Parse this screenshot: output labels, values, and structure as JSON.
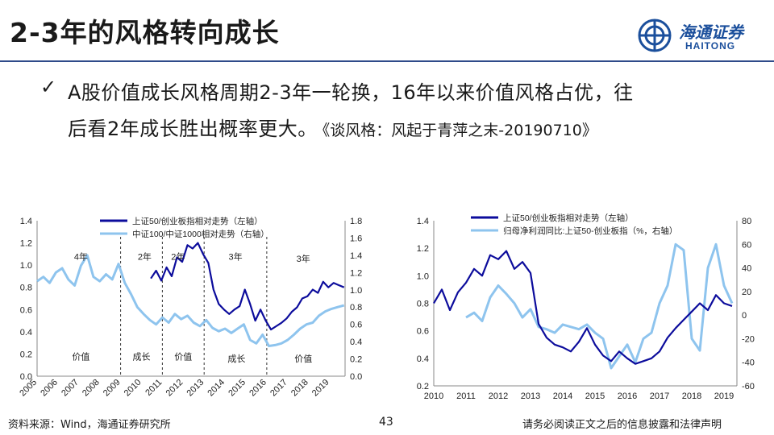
{
  "slide": {
    "title": "2-3年的风格转向成长",
    "logo": {
      "cn": "海通证券",
      "en": "HAITONG"
    },
    "bullet": {
      "check": "✓",
      "line1": "A股价值成长风格周期2-3年一轮换，16年以来价值风格占优，往",
      "line2": "后看2年成长胜出概率更大。",
      "ref": "《谈风格：风起于青萍之末-20190710》"
    },
    "footer": {
      "source": "资料来源：Wind，海通证券研究所",
      "page": "43",
      "disclaimer": "请务必阅读正文之后的信息披露和法律声明"
    }
  },
  "colors": {
    "dark_series": "#0c0c9c",
    "light_series": "#8ec4ee",
    "title_rule": "#2f4b8a",
    "logo": "#1b4f9c"
  },
  "chart_data": [
    {
      "type": "line",
      "x_type": "time",
      "xlim": [
        2005,
        2019.75
      ],
      "x_ticks": [
        "2005",
        "2006",
        "2007",
        "2008",
        "2009",
        "2010",
        "2011",
        "2012",
        "2013",
        "2014",
        "2015",
        "2016",
        "2017",
        "2018",
        "2019"
      ],
      "ylim_left": [
        0,
        1.4
      ],
      "yticks_left": [
        "0.0",
        "0.2",
        "0.4",
        "0.6",
        "0.8",
        "1.0",
        "1.2",
        "1.4"
      ],
      "ylim_right": [
        0,
        1.8
      ],
      "yticks_right": [
        "0.0",
        "0.2",
        "0.4",
        "0.6",
        "0.8",
        "1.0",
        "1.2",
        "1.4",
        "1.6",
        "1.8"
      ],
      "grid": false,
      "legend_position": "top-center",
      "series": [
        {
          "name": "上证50/创业板指相对走势（左轴）",
          "axis": "left",
          "color": "#0c0c9c",
          "x": [
            2010.45,
            2010.7,
            2010.95,
            2011.2,
            2011.45,
            2011.7,
            2011.95,
            2012.2,
            2012.45,
            2012.7,
            2012.95,
            2013.2,
            2013.45,
            2013.7,
            2013.95,
            2014.2,
            2014.45,
            2014.7,
            2014.95,
            2015.2,
            2015.45,
            2015.7,
            2015.95,
            2016.2,
            2016.45,
            2016.7,
            2016.95,
            2017.2,
            2017.45,
            2017.7,
            2017.95,
            2018.2,
            2018.45,
            2018.7,
            2018.95,
            2019.2,
            2019.45,
            2019.7
          ],
          "y": [
            0.88,
            0.95,
            0.86,
            0.98,
            0.9,
            1.07,
            1.03,
            1.18,
            1.15,
            1.2,
            1.1,
            1.02,
            0.78,
            0.65,
            0.6,
            0.56,
            0.6,
            0.63,
            0.78,
            0.65,
            0.5,
            0.6,
            0.5,
            0.42,
            0.45,
            0.48,
            0.52,
            0.58,
            0.62,
            0.7,
            0.72,
            0.78,
            0.75,
            0.85,
            0.8,
            0.84,
            0.82,
            0.8
          ]
        },
        {
          "name": "中证100/中证1000相对走势（右轴）",
          "axis": "right",
          "color": "#8ec4ee",
          "x": [
            2005.0,
            2005.3,
            2005.6,
            2005.9,
            2006.2,
            2006.5,
            2006.8,
            2007.1,
            2007.4,
            2007.7,
            2008.0,
            2008.3,
            2008.6,
            2008.9,
            2009.2,
            2009.5,
            2009.8,
            2010.1,
            2010.4,
            2010.7,
            2011.0,
            2011.3,
            2011.6,
            2011.9,
            2012.2,
            2012.5,
            2012.8,
            2013.1,
            2013.4,
            2013.7,
            2014.0,
            2014.3,
            2014.6,
            2014.9,
            2015.2,
            2015.5,
            2015.8,
            2016.1,
            2016.4,
            2016.7,
            2017.0,
            2017.3,
            2017.6,
            2017.9,
            2018.2,
            2018.5,
            2018.8,
            2019.1,
            2019.4,
            2019.7
          ],
          "y": [
            1.1,
            1.15,
            1.08,
            1.2,
            1.25,
            1.12,
            1.05,
            1.28,
            1.4,
            1.15,
            1.1,
            1.18,
            1.12,
            1.3,
            1.08,
            0.95,
            0.8,
            0.72,
            0.65,
            0.6,
            0.68,
            0.62,
            0.72,
            0.66,
            0.7,
            0.62,
            0.58,
            0.65,
            0.56,
            0.52,
            0.55,
            0.5,
            0.55,
            0.6,
            0.42,
            0.38,
            0.48,
            0.35,
            0.36,
            0.38,
            0.42,
            0.48,
            0.55,
            0.6,
            0.62,
            0.7,
            0.75,
            0.78,
            0.8,
            0.82
          ]
        }
      ],
      "annotations": [
        {
          "text": "4年",
          "x": 2007.1,
          "y": 1.05
        },
        {
          "text": "2年",
          "x": 2010.15,
          "y": 1.05
        },
        {
          "text": "2年",
          "x": 2011.75,
          "y": 1.05
        },
        {
          "text": "3年",
          "x": 2014.5,
          "y": 1.05
        },
        {
          "text": "3年",
          "x": 2017.75,
          "y": 1.03
        },
        {
          "text": "价值",
          "x": 2007.1,
          "y": 0.15
        },
        {
          "text": "成长",
          "x": 2010.0,
          "y": 0.15
        },
        {
          "text": "价值",
          "x": 2012.0,
          "y": 0.15
        },
        {
          "text": "成长",
          "x": 2014.55,
          "y": 0.13
        },
        {
          "text": "价值",
          "x": 2017.75,
          "y": 0.13
        }
      ],
      "dividers_x": [
        2009.0,
        2011.0,
        2013.0,
        2016.0
      ]
    },
    {
      "type": "line",
      "x_type": "time",
      "xlim": [
        2010,
        2019.4
      ],
      "x_ticks": [
        "2010",
        "2011",
        "2012",
        "2013",
        "2014",
        "2015",
        "2016",
        "2017",
        "2018",
        "2019"
      ],
      "ylim_left": [
        0.2,
        1.4
      ],
      "yticks_left": [
        "0.2",
        "0.4",
        "0.6",
        "0.8",
        "1.0",
        "1.2",
        "1.4"
      ],
      "ylim_right": [
        -60,
        80
      ],
      "yticks_right": [
        "-60",
        "-40",
        "-20",
        "0",
        "20",
        "40",
        "60",
        "80"
      ],
      "grid": false,
      "legend_position": "top-center",
      "series": [
        {
          "name": "上证50/创业板指相对走势（左轴）",
          "axis": "left",
          "color": "#0c0c9c",
          "x": [
            2010.0,
            2010.25,
            2010.5,
            2010.75,
            2011.0,
            2011.25,
            2011.5,
            2011.75,
            2012.0,
            2012.25,
            2012.5,
            2012.75,
            2013.0,
            2013.25,
            2013.5,
            2013.75,
            2014.0,
            2014.25,
            2014.5,
            2014.75,
            2015.0,
            2015.25,
            2015.5,
            2015.75,
            2016.0,
            2016.25,
            2016.5,
            2016.75,
            2017.0,
            2017.25,
            2017.5,
            2017.75,
            2018.0,
            2018.25,
            2018.5,
            2018.75,
            2019.0,
            2019.25
          ],
          "y": [
            0.8,
            0.9,
            0.75,
            0.88,
            0.95,
            1.05,
            1.0,
            1.15,
            1.12,
            1.18,
            1.05,
            1.1,
            1.02,
            0.65,
            0.55,
            0.5,
            0.48,
            0.45,
            0.52,
            0.62,
            0.5,
            0.42,
            0.38,
            0.45,
            0.4,
            0.36,
            0.38,
            0.4,
            0.45,
            0.55,
            0.62,
            0.68,
            0.74,
            0.8,
            0.75,
            0.86,
            0.8,
            0.78
          ]
        },
        {
          "name": "归母净利润同比:上证50-创业板指（%，右轴）",
          "axis": "right",
          "color": "#8ec4ee",
          "x": [
            2011.0,
            2011.25,
            2011.5,
            2011.75,
            2012.0,
            2012.25,
            2012.5,
            2012.75,
            2013.0,
            2013.25,
            2013.5,
            2013.75,
            2014.0,
            2014.25,
            2014.5,
            2014.75,
            2015.0,
            2015.25,
            2015.5,
            2015.75,
            2016.0,
            2016.25,
            2016.5,
            2016.75,
            2017.0,
            2017.25,
            2017.5,
            2017.75,
            2018.0,
            2018.25,
            2018.5,
            2018.75,
            2019.0,
            2019.25
          ],
          "y": [
            -2,
            2,
            -5,
            15,
            25,
            18,
            10,
            -2,
            5,
            -10,
            -12,
            -15,
            -8,
            -10,
            -12,
            -8,
            -15,
            -20,
            -45,
            -35,
            -25,
            -40,
            -20,
            -15,
            10,
            25,
            60,
            55,
            -20,
            -30,
            40,
            60,
            25,
            10
          ]
        }
      ]
    }
  ]
}
